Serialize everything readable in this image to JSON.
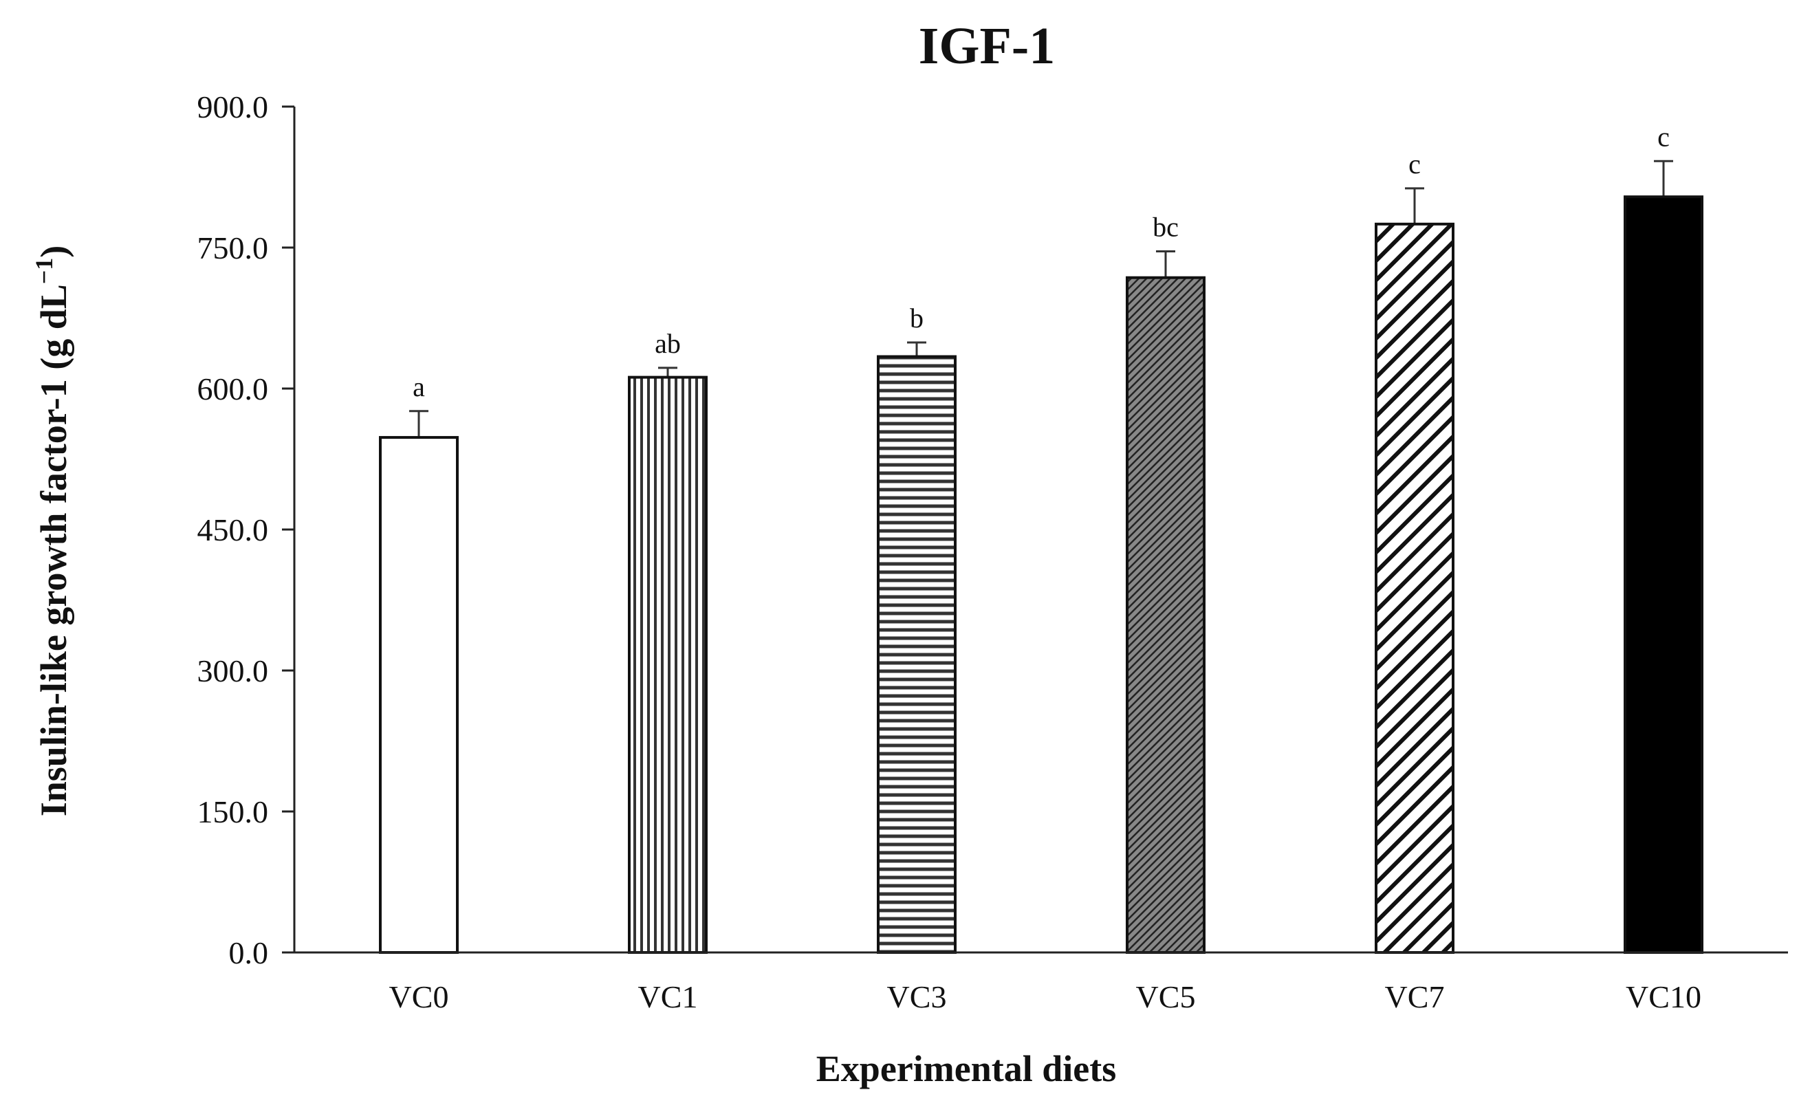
{
  "chart_data": {
    "type": "bar",
    "title": "IGF-1",
    "xlabel": "Experimental diets",
    "ylabel": "Insulin-like growth factor-1 (g dL",
    "ylabel_superscript": "−1",
    "ylabel_suffix": ")",
    "categories": [
      "VC0",
      "VC1",
      "VC3",
      "VC5",
      "VC7",
      "VC10"
    ],
    "values": [
      548,
      612,
      634,
      718,
      775,
      804
    ],
    "errors": [
      28,
      10,
      15,
      28,
      38,
      38
    ],
    "significance": [
      "a",
      "ab",
      "b",
      "bc",
      "c",
      "c"
    ],
    "fills": [
      "open",
      "vertical-lines",
      "horizontal-lines",
      "fine-diagonal-dense",
      "wide-diagonal-stripes",
      "solid-black"
    ],
    "ylim": [
      0,
      900
    ],
    "yticks": [
      "0.0",
      "150.0",
      "300.0",
      "450.0",
      "600.0",
      "750.0",
      "900.0"
    ],
    "ytick_values": [
      0,
      150,
      300,
      450,
      600,
      750,
      900
    ],
    "grid": false,
    "bar_color": "#000000",
    "background_color": "#ffffff"
  }
}
